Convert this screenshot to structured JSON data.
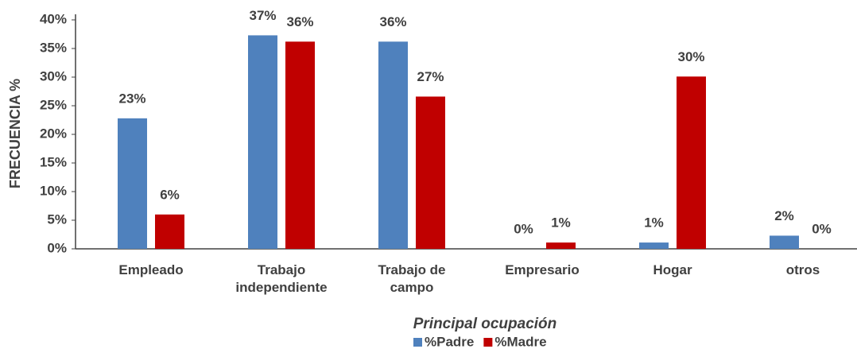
{
  "chart_data": {
    "type": "bar",
    "y_label": "FRECUENCIA %",
    "x_label": "Principal ocupación",
    "categories": [
      "Empleado",
      "Trabajo\nindependiente",
      "Trabajo de\ncampo",
      "Empresario",
      "Hogar",
      "otros"
    ],
    "series": [
      {
        "name": "%Padre",
        "color": "#4f81bd",
        "values": [
          22.8,
          37.3,
          36.2,
          0,
          1.1,
          2.3
        ],
        "value_labels": [
          "23%",
          "37%",
          "36%",
          "0%",
          "1%",
          "2%"
        ]
      },
      {
        "name": "%Madre",
        "color": "#c00000",
        "values": [
          6,
          36.2,
          26.6,
          1.1,
          30.1,
          0
        ],
        "value_labels": [
          "6%",
          "36%",
          "27%",
          "1%",
          "30%",
          "0%"
        ]
      }
    ],
    "ylim": [
      0,
      40
    ],
    "yticks": [
      {
        "value": 0,
        "label": "0%"
      },
      {
        "value": 5,
        "label": "5%"
      },
      {
        "value": 10,
        "label": "10%"
      },
      {
        "value": 15,
        "label": "15%"
      },
      {
        "value": 20,
        "label": "20%"
      },
      {
        "value": 25,
        "label": "25%"
      },
      {
        "value": 30,
        "label": "30%"
      },
      {
        "value": 35,
        "label": "35%"
      },
      {
        "value": 40,
        "label": "40%"
      }
    ],
    "legend": "bottom"
  }
}
